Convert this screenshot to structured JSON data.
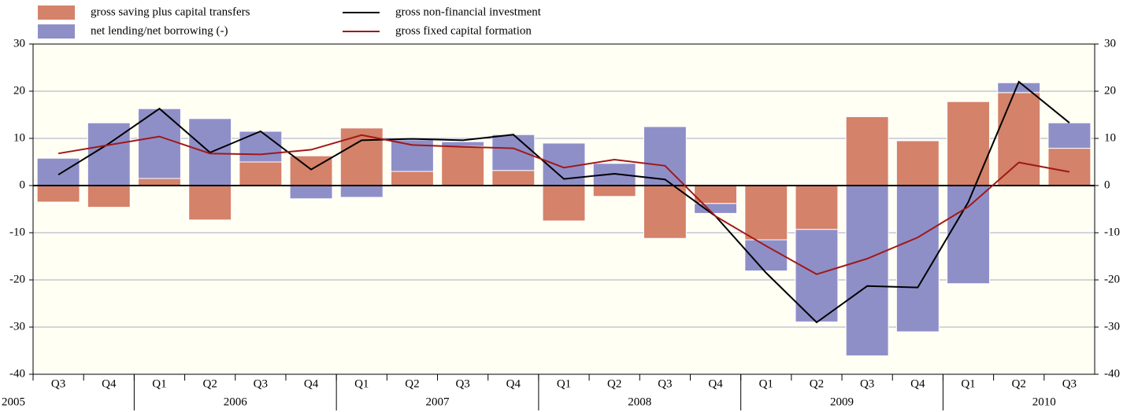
{
  "chart_data": {
    "type": "bar",
    "categories": [
      "Q3",
      "Q4",
      "Q1",
      "Q2",
      "Q3",
      "Q4",
      "Q1",
      "Q2",
      "Q3",
      "Q4",
      "Q1",
      "Q2",
      "Q3",
      "Q4",
      "Q1",
      "Q2",
      "Q3",
      "Q4",
      "Q1",
      "Q2",
      "Q3"
    ],
    "year_labels": [
      "2005",
      "2006",
      "2007",
      "2008",
      "2009",
      "2010"
    ],
    "series": [
      {
        "name": "gross saving plus capital transfers",
        "type": "bar",
        "color": "#d4826a",
        "values": [
          -3.5,
          -4.6,
          1.5,
          -7.3,
          5.0,
          6.3,
          12.2,
          3.0,
          8.3,
          3.2,
          -7.5,
          -2.3,
          -11.2,
          -3.8,
          -11.5,
          -9.3,
          14.6,
          9.5,
          17.8,
          19.7,
          7.9
        ]
      },
      {
        "name": "net lending/net borrowing (-)",
        "type": "bar",
        "color": "#8f8fc8",
        "values": [
          5.8,
          13.3,
          14.8,
          14.2,
          6.5,
          -2.8,
          -2.5,
          6.7,
          1.0,
          7.6,
          9.0,
          4.7,
          12.5,
          -2.1,
          -6.6,
          -19.6,
          -36.1,
          -31.0,
          -20.8,
          2.1,
          5.4
        ]
      },
      {
        "name": "gross non-financial investment",
        "type": "line",
        "color": "#000000",
        "values": [
          2.3,
          8.9,
          16.3,
          7.0,
          11.5,
          3.4,
          9.6,
          9.9,
          9.6,
          10.8,
          1.4,
          2.5,
          1.3,
          -6.5,
          -18.5,
          -29.0,
          -21.3,
          -21.6,
          -3.5,
          22.0,
          13.3
        ]
      },
      {
        "name": "gross fixed capital formation",
        "type": "line",
        "color": "#a01818",
        "values": [
          6.8,
          8.6,
          10.4,
          6.8,
          6.6,
          7.6,
          10.7,
          8.6,
          8.2,
          7.9,
          3.8,
          5.5,
          4.2,
          -6.5,
          -12.8,
          -18.8,
          -15.5,
          -11.0,
          -4.5,
          4.9,
          2.9
        ]
      }
    ],
    "ylim": [
      -40,
      30
    ],
    "yticks": [
      -40,
      -30,
      -20,
      -10,
      0,
      10,
      20,
      30
    ],
    "y2lim": [
      -40,
      30
    ],
    "y2ticks": [
      -40,
      -30,
      -20,
      -10,
      0,
      10,
      20,
      30
    ],
    "grid": true
  }
}
